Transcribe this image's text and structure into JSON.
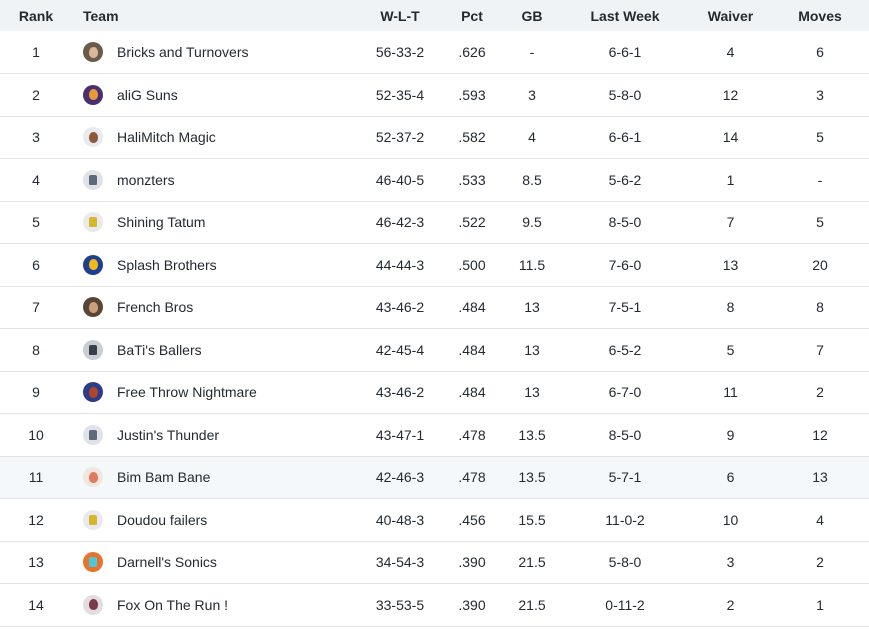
{
  "table": {
    "headers": {
      "rank": "Rank",
      "team": "Team",
      "wlt": "W-L-T",
      "pct": "Pct",
      "gb": "GB",
      "last_week": "Last Week",
      "waiver": "Waiver",
      "moves": "Moves"
    },
    "rows": [
      {
        "rank": "1",
        "team": "Bricks and Turnovers",
        "wlt": "56-33-2",
        "pct": ".626",
        "gb": "-",
        "last_week": "6-6-1",
        "waiver": "4",
        "moves": "6",
        "avatar": {
          "icon": "player-photo-icon",
          "bg": "#6b5a4a",
          "fg": "#d9b99a",
          "style": "face"
        }
      },
      {
        "rank": "2",
        "team": "aliG Suns",
        "wlt": "52-35-4",
        "pct": ".593",
        "gb": "3",
        "last_week": "5-8-0",
        "waiver": "12",
        "moves": "3",
        "avatar": {
          "icon": "player-photo-icon",
          "bg": "#4a2f6e",
          "fg": "#e89a3a",
          "style": "face"
        }
      },
      {
        "rank": "3",
        "team": "HaliMitch Magic",
        "wlt": "52-37-2",
        "pct": ".582",
        "gb": "4",
        "last_week": "6-6-1",
        "waiver": "14",
        "moves": "5",
        "avatar": {
          "icon": "player-photo-icon",
          "bg": "#e8eaee",
          "fg": "#8a5a3a",
          "style": "face"
        }
      },
      {
        "rank": "4",
        "team": "monzters",
        "wlt": "46-40-5",
        "pct": ".533",
        "gb": "8.5",
        "last_week": "5-6-2",
        "waiver": "1",
        "moves": "-",
        "avatar": {
          "icon": "jersey-icon",
          "bg": "#dfe3e8",
          "fg": "#5c6a7a",
          "style": "jersey"
        }
      },
      {
        "rank": "5",
        "team": "Shining Tatum",
        "wlt": "46-42-3",
        "pct": ".522",
        "gb": "9.5",
        "last_week": "8-5-0",
        "waiver": "7",
        "moves": "5",
        "avatar": {
          "icon": "jersey-icon",
          "bg": "#e8eaee",
          "fg": "#d8b62a",
          "style": "jersey"
        }
      },
      {
        "rank": "6",
        "team": "Splash Brothers",
        "wlt": "44-44-3",
        "pct": ".500",
        "gb": "11.5",
        "last_week": "7-6-0",
        "waiver": "13",
        "moves": "20",
        "avatar": {
          "icon": "team-logo-icon",
          "bg": "#1d3f8f",
          "fg": "#f2b81c",
          "style": "face"
        }
      },
      {
        "rank": "7",
        "team": "French Bros",
        "wlt": "43-46-2",
        "pct": ".484",
        "gb": "13",
        "last_week": "7-5-1",
        "waiver": "8",
        "moves": "8",
        "avatar": {
          "icon": "player-photo-icon",
          "bg": "#5a4636",
          "fg": "#c9a07a",
          "style": "face"
        }
      },
      {
        "rank": "8",
        "team": "BaTi's Ballers",
        "wlt": "42-45-4",
        "pct": ".484",
        "gb": "13",
        "last_week": "6-5-2",
        "waiver": "5",
        "moves": "7",
        "avatar": {
          "icon": "jersey-icon",
          "bg": "#c9ced5",
          "fg": "#3a3f46",
          "style": "jersey"
        }
      },
      {
        "rank": "9",
        "team": "Free Throw Nightmare",
        "wlt": "43-46-2",
        "pct": ".484",
        "gb": "13",
        "last_week": "6-7-0",
        "waiver": "11",
        "moves": "2",
        "avatar": {
          "icon": "player-photo-icon",
          "bg": "#2a3c8a",
          "fg": "#b0442e",
          "style": "face"
        }
      },
      {
        "rank": "10",
        "team": "Justin's Thunder",
        "wlt": "43-47-1",
        "pct": ".478",
        "gb": "13.5",
        "last_week": "8-5-0",
        "waiver": "9",
        "moves": "12",
        "avatar": {
          "icon": "jersey-icon",
          "bg": "#dfe3e8",
          "fg": "#5c6a7a",
          "style": "jersey"
        }
      },
      {
        "rank": "11",
        "team": "Bim Bam Bane",
        "wlt": "42-46-3",
        "pct": ".478",
        "gb": "13.5",
        "last_week": "5-7-1",
        "waiver": "6",
        "moves": "13",
        "avatar": {
          "icon": "cartoon-face-icon",
          "bg": "#f2e6e0",
          "fg": "#e07a5a",
          "style": "face"
        }
      },
      {
        "rank": "12",
        "team": "Doudou failers",
        "wlt": "40-48-3",
        "pct": ".456",
        "gb": "15.5",
        "last_week": "11-0-2",
        "waiver": "10",
        "moves": "4",
        "avatar": {
          "icon": "jersey-icon",
          "bg": "#e8eaee",
          "fg": "#d8b62a",
          "style": "jersey"
        }
      },
      {
        "rank": "13",
        "team": "Darnell's Sonics",
        "wlt": "34-54-3",
        "pct": ".390",
        "gb": "21.5",
        "last_week": "5-8-0",
        "waiver": "3",
        "moves": "2",
        "avatar": {
          "icon": "jersey-icon",
          "bg": "#e8742c",
          "fg": "#4fc6d8",
          "style": "jersey"
        }
      },
      {
        "rank": "14",
        "team": "Fox On The Run !",
        "wlt": "33-53-5",
        "pct": ".390",
        "gb": "21.5",
        "last_week": "0-11-2",
        "waiver": "2",
        "moves": "1",
        "avatar": {
          "icon": "player-photo-icon",
          "bg": "#e3dde0",
          "fg": "#7a3a4a",
          "style": "face"
        }
      }
    ],
    "highlight_row": "11"
  }
}
